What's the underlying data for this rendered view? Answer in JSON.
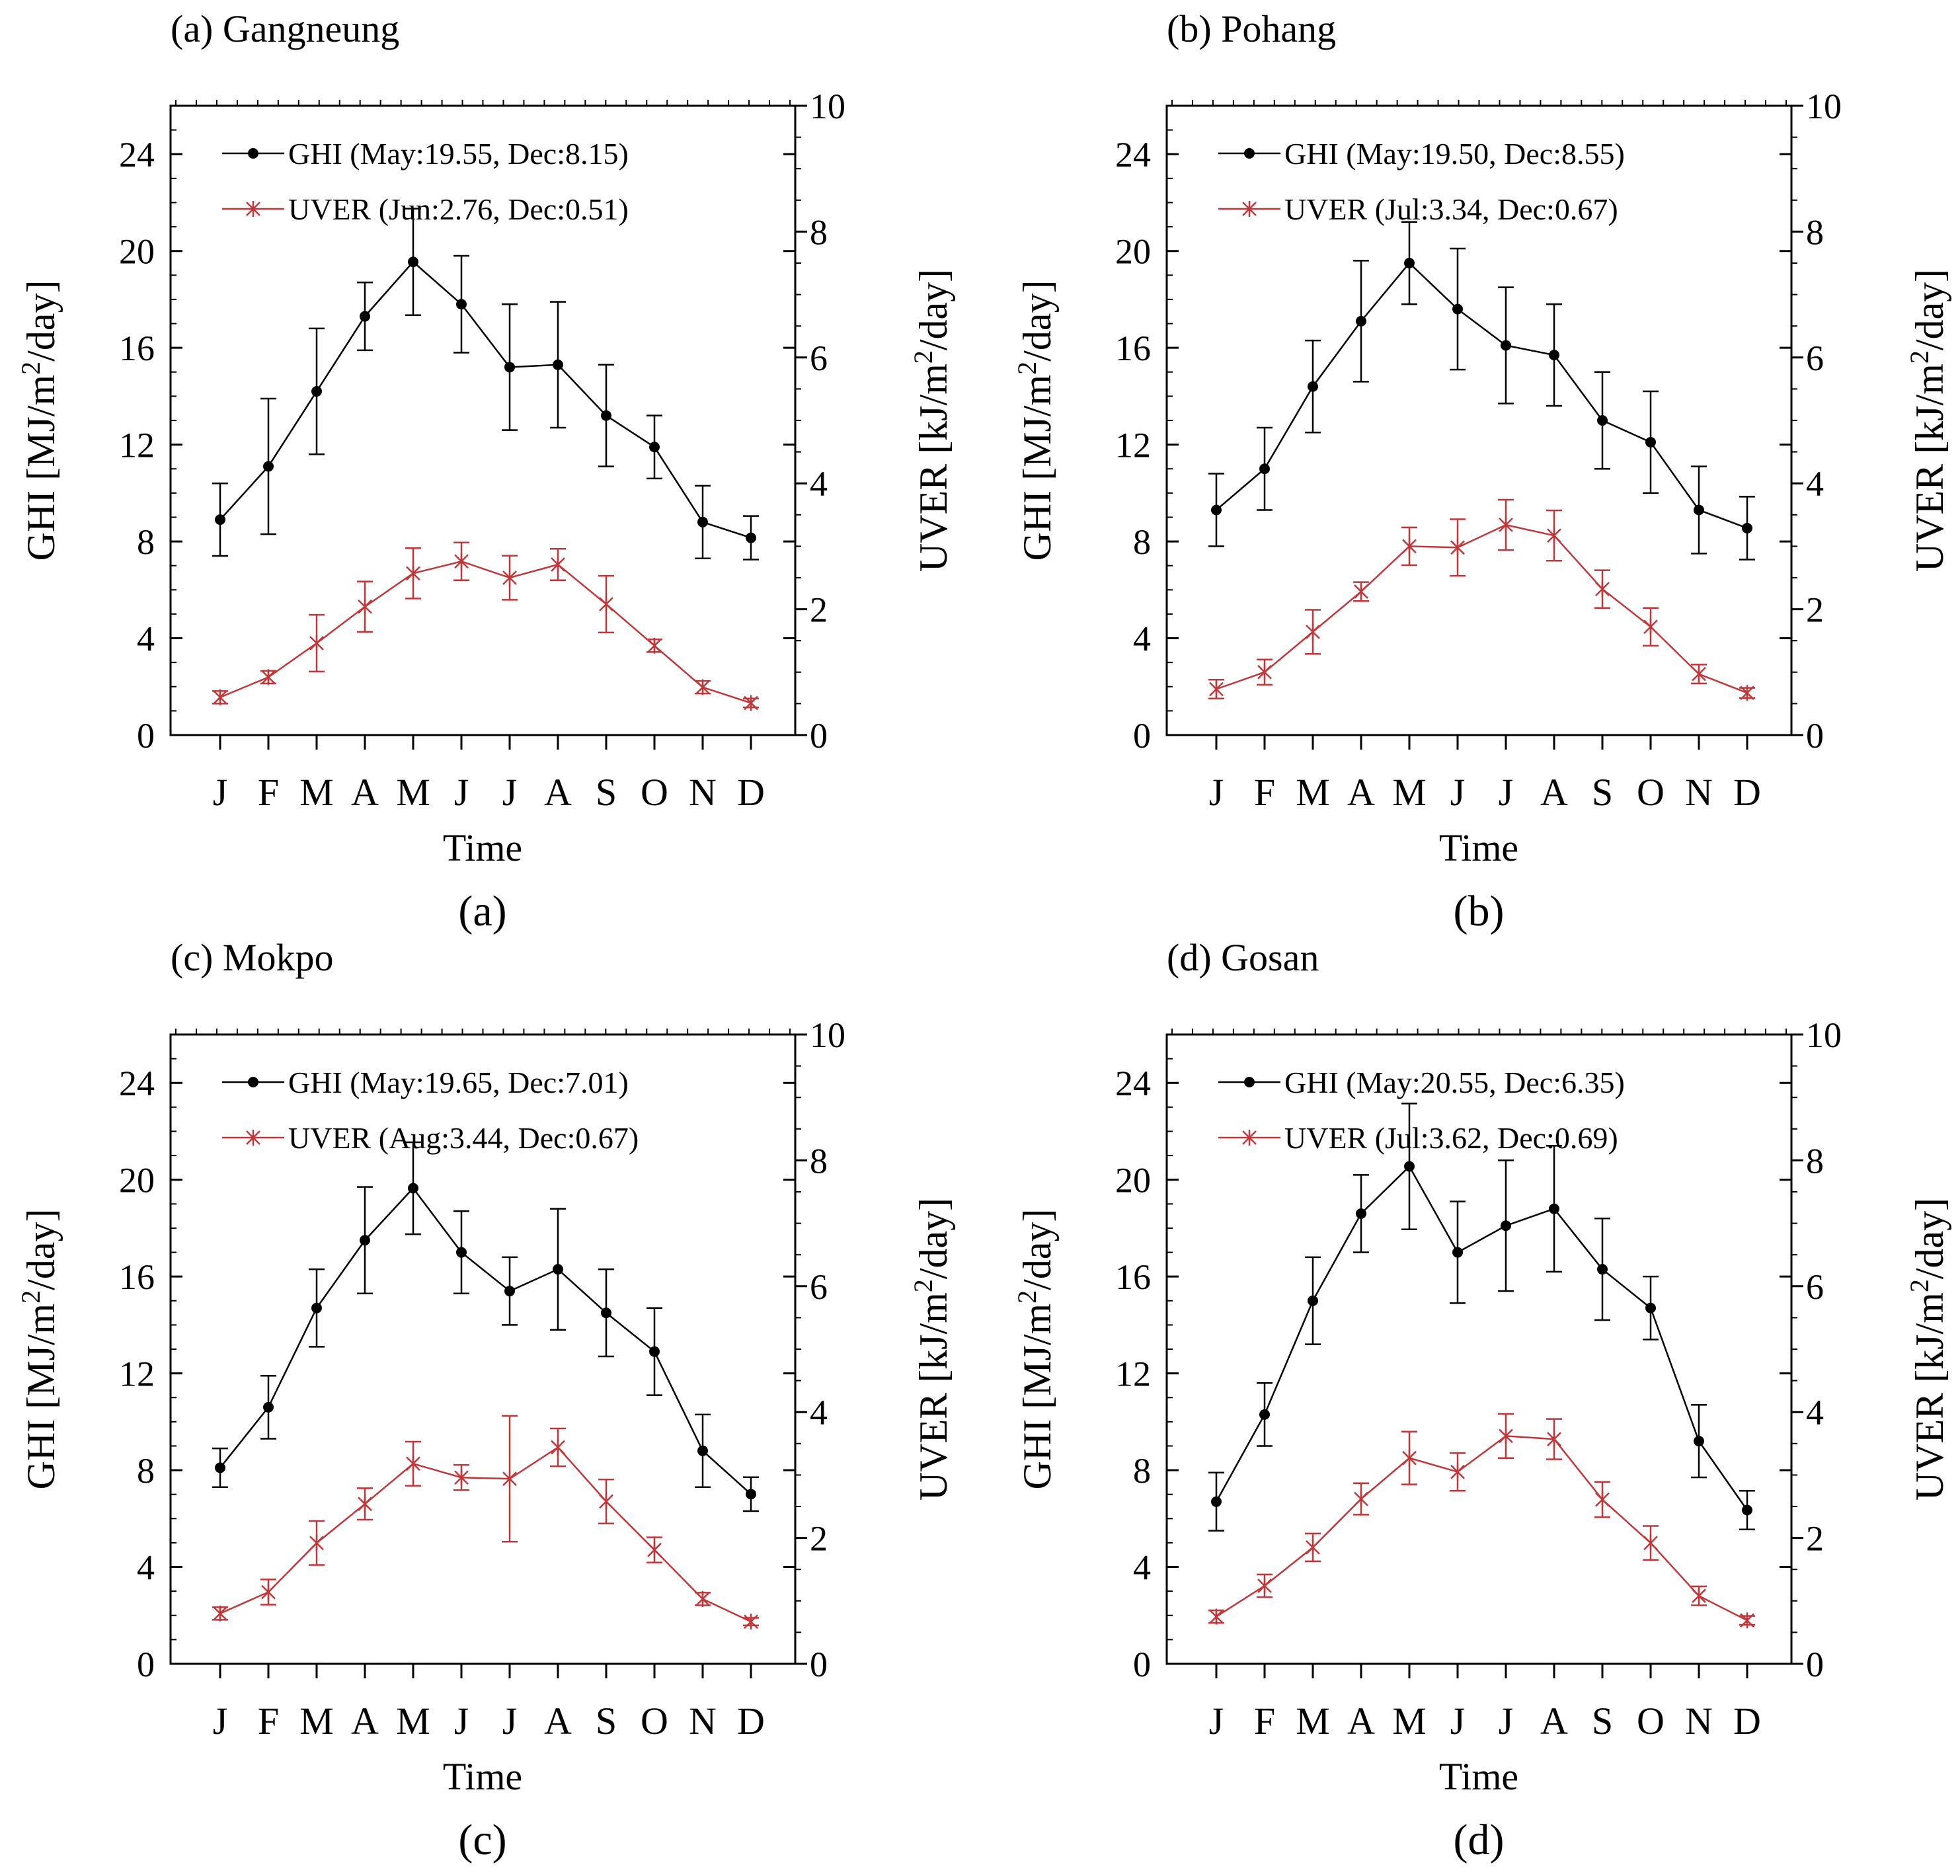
{
  "figure": {
    "months": [
      "J",
      "F",
      "M",
      "A",
      "M",
      "J",
      "J",
      "A",
      "S",
      "O",
      "N",
      "D"
    ],
    "xlabel": "Time",
    "ylabel_left": "GHI [MJ/m^2/day]",
    "ylabel_right": "UVER [kJ/m^2/day]",
    "left_ticks": [
      "0",
      "4",
      "8",
      "12",
      "16",
      "20",
      "24"
    ],
    "right_ticks": [
      "0",
      "2",
      "4",
      "6",
      "8",
      "10"
    ],
    "colors": {
      "ghi": "#000000",
      "uver": "#c0373a"
    }
  },
  "chart_data": [
    {
      "type": "line",
      "title": "(a) Gangneung",
      "caption": "(a)",
      "categories": [
        "J",
        "F",
        "M",
        "A",
        "M",
        "J",
        "J",
        "A",
        "S",
        "O",
        "N",
        "D"
      ],
      "xlabel": "Time",
      "ylabel": "GHI [MJ/m2/day]",
      "ylabel_right": "UVER [kJ/m2/day]",
      "ylim": [
        0,
        26
      ],
      "ylim_right": [
        0,
        10
      ],
      "series": [
        {
          "name": "GHI",
          "legend": "GHI (May:19.55, Dec:8.15)",
          "axis": "left",
          "marker": "dot",
          "values": [
            8.9,
            11.1,
            14.2,
            17.3,
            19.55,
            17.8,
            15.2,
            15.3,
            13.2,
            11.9,
            8.8,
            8.15
          ],
          "err": [
            1.5,
            2.8,
            2.6,
            1.4,
            2.2,
            2.0,
            2.6,
            2.6,
            2.1,
            1.3,
            1.5,
            0.9
          ]
        },
        {
          "name": "UVER",
          "legend": "UVER (Jun:2.76, Dec:0.51)",
          "axis": "right",
          "marker": "star",
          "values": [
            0.6,
            0.92,
            1.46,
            2.04,
            2.57,
            2.76,
            2.5,
            2.71,
            2.08,
            1.42,
            0.76,
            0.51
          ],
          "err": [
            0.1,
            0.1,
            0.45,
            0.4,
            0.4,
            0.3,
            0.35,
            0.25,
            0.45,
            0.1,
            0.1,
            0.07
          ]
        }
      ]
    },
    {
      "type": "line",
      "title": "(b) Pohang",
      "caption": "(b)",
      "categories": [
        "J",
        "F",
        "M",
        "A",
        "M",
        "J",
        "J",
        "A",
        "S",
        "O",
        "N",
        "D"
      ],
      "xlabel": "Time",
      "ylabel": "GHI [MJ/m2/day]",
      "ylabel_right": "UVER [kJ/m2/day]",
      "ylim": [
        0,
        26
      ],
      "ylim_right": [
        0,
        10
      ],
      "series": [
        {
          "name": "GHI",
          "legend": "GHI (May:19.50, Dec:8.55)",
          "axis": "left",
          "marker": "dot",
          "values": [
            9.3,
            11.0,
            14.4,
            17.1,
            19.5,
            17.6,
            16.1,
            15.7,
            13.0,
            12.1,
            9.3,
            8.55
          ],
          "err": [
            1.5,
            1.7,
            1.9,
            2.5,
            1.7,
            2.5,
            2.4,
            2.1,
            2.0,
            2.1,
            1.8,
            1.3
          ]
        },
        {
          "name": "UVER",
          "legend": "UVER (Jul:3.34, Dec:0.67)",
          "axis": "right",
          "marker": "star",
          "values": [
            0.73,
            1.0,
            1.64,
            2.28,
            3.0,
            2.98,
            3.34,
            3.17,
            2.32,
            1.72,
            0.97,
            0.67
          ],
          "err": [
            0.15,
            0.2,
            0.35,
            0.15,
            0.3,
            0.45,
            0.4,
            0.4,
            0.3,
            0.3,
            0.15,
            0.08
          ]
        }
      ]
    },
    {
      "type": "line",
      "title": "(c) Mokpo",
      "caption": "(c)",
      "categories": [
        "J",
        "F",
        "M",
        "A",
        "M",
        "J",
        "J",
        "A",
        "S",
        "O",
        "N",
        "D"
      ],
      "xlabel": "Time",
      "ylabel": "GHI [MJ/m2/day]",
      "ylabel_right": "UVER [kJ/m2/day]",
      "ylim": [
        0,
        26
      ],
      "ylim_right": [
        0,
        10
      ],
      "series": [
        {
          "name": "GHI",
          "legend": "GHI (May:19.65, Dec:7.01)",
          "axis": "left",
          "marker": "dot",
          "values": [
            8.1,
            10.6,
            14.7,
            17.5,
            19.65,
            17.0,
            15.4,
            16.3,
            14.5,
            12.9,
            8.8,
            7.01
          ],
          "err": [
            0.8,
            1.3,
            1.6,
            2.2,
            1.9,
            1.7,
            1.4,
            2.5,
            1.8,
            1.8,
            1.5,
            0.7
          ]
        },
        {
          "name": "UVER",
          "legend": "UVER (Aug:3.44, Dec:0.67)",
          "axis": "right",
          "marker": "star",
          "values": [
            0.8,
            1.14,
            1.92,
            2.54,
            3.18,
            2.96,
            2.94,
            3.44,
            2.58,
            1.81,
            1.03,
            0.67
          ],
          "err": [
            0.1,
            0.2,
            0.35,
            0.25,
            0.35,
            0.2,
            1.0,
            0.3,
            0.35,
            0.2,
            0.1,
            0.06
          ]
        }
      ]
    },
    {
      "type": "line",
      "title": "(d) Gosan",
      "caption": "(d)",
      "categories": [
        "J",
        "F",
        "M",
        "A",
        "M",
        "J",
        "J",
        "A",
        "S",
        "O",
        "N",
        "D"
      ],
      "xlabel": "Time",
      "ylabel": "GHI [MJ/m2/day]",
      "ylabel_right": "UVER [kJ/m2/day]",
      "ylim": [
        0,
        26
      ],
      "ylim_right": [
        0,
        10
      ],
      "series": [
        {
          "name": "GHI",
          "legend": "GHI (May:20.55, Dec:6.35)",
          "axis": "left",
          "marker": "dot",
          "values": [
            6.7,
            10.3,
            15.0,
            18.6,
            20.55,
            17.0,
            18.1,
            18.8,
            16.3,
            14.7,
            9.2,
            6.35
          ],
          "err": [
            1.2,
            1.3,
            1.8,
            1.6,
            2.6,
            2.1,
            2.7,
            2.6,
            2.1,
            1.3,
            1.5,
            0.8
          ]
        },
        {
          "name": "UVER",
          "legend": "UVER (Jul:3.62, Dec:0.69)",
          "axis": "right",
          "marker": "star",
          "values": [
            0.75,
            1.24,
            1.85,
            2.62,
            3.27,
            3.05,
            3.62,
            3.57,
            2.61,
            1.92,
            1.08,
            0.69
          ],
          "err": [
            0.1,
            0.18,
            0.22,
            0.25,
            0.42,
            0.3,
            0.35,
            0.32,
            0.28,
            0.27,
            0.15,
            0.07
          ]
        }
      ]
    }
  ]
}
